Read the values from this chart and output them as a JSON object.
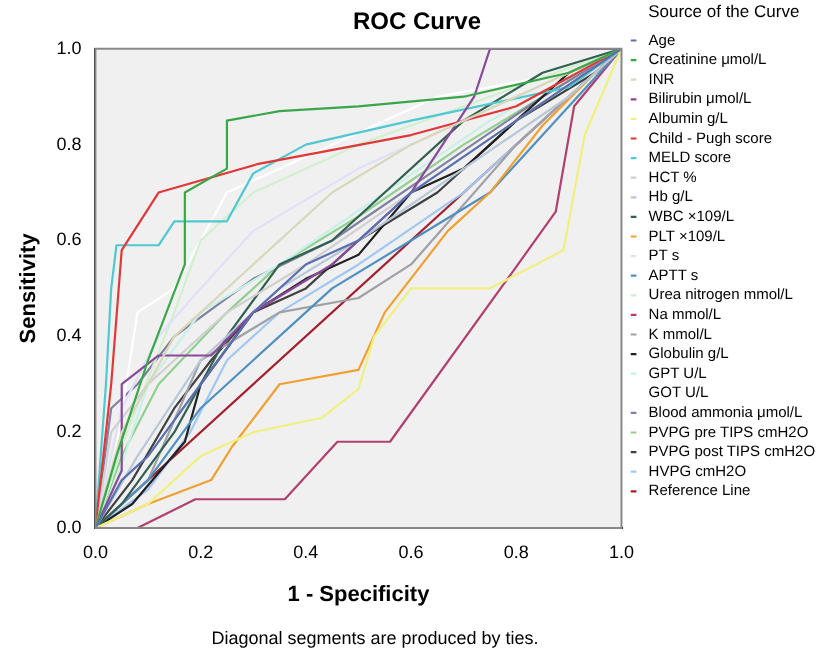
{
  "chart_data": {
    "type": "line",
    "title": "ROC Curve",
    "xlabel": "1 - Specificity",
    "ylabel": "Sensitivity",
    "legend_title": "Source of the Curve",
    "annotations": [
      "Diagonal segments are produced by ties."
    ],
    "xlim": [
      0,
      1
    ],
    "ylim": [
      0,
      1
    ],
    "xticks": [
      {
        "value": 0,
        "label": "0.0"
      },
      {
        "value": 0.2,
        "label": "0.2"
      },
      {
        "value": 0.4,
        "label": "0.4"
      },
      {
        "value": 0.6,
        "label": "0.6"
      },
      {
        "value": 0.8,
        "label": "0.8"
      },
      {
        "value": 1,
        "label": "1.0"
      }
    ],
    "yticks": [
      {
        "value": 0,
        "label": "0.0"
      },
      {
        "value": 0.2,
        "label": "0.2"
      },
      {
        "value": 0.4,
        "label": "0.4"
      },
      {
        "value": 0.6,
        "label": "0.6"
      },
      {
        "value": 0.8,
        "label": "0.8"
      },
      {
        "value": 1,
        "label": "1.0"
      }
    ],
    "grid": false,
    "legend": "right",
    "marker": "none",
    "line_style": "solid",
    "series": [
      {
        "name": "Age",
        "color": "#5a6fb0",
        "x": [
          0,
          0.05,
          0.1,
          0.2,
          0.3,
          0.4,
          0.5,
          0.6,
          0.8,
          1
        ],
        "values": [
          0,
          0.1,
          0.15,
          0.3,
          0.45,
          0.55,
          0.6,
          0.7,
          0.85,
          1
        ]
      },
      {
        "name": "Creatinine μmol/L",
        "color": "#3aa64a",
        "x": [
          0,
          0.04,
          0.1,
          0.17,
          0.17,
          0.25,
          0.25,
          0.35,
          0.5,
          0.7,
          0.9,
          1
        ],
        "values": [
          0,
          0.15,
          0.35,
          0.55,
          0.7,
          0.75,
          0.85,
          0.87,
          0.88,
          0.9,
          0.95,
          1
        ]
      },
      {
        "name": "INR",
        "color": "#d8d8b8",
        "x": [
          0,
          0.05,
          0.15,
          0.3,
          0.45,
          0.6,
          0.8,
          1
        ],
        "values": [
          0,
          0.2,
          0.4,
          0.55,
          0.7,
          0.8,
          0.9,
          1
        ]
      },
      {
        "name": "Bilirubin μmol/L",
        "color": "#8a4a9a",
        "x": [
          0,
          0.05,
          0.05,
          0.12,
          0.22,
          0.3,
          0.45,
          0.6,
          0.72,
          0.75,
          1
        ],
        "values": [
          0,
          0.12,
          0.3,
          0.36,
          0.36,
          0.45,
          0.55,
          0.7,
          0.9,
          1,
          1
        ]
      },
      {
        "name": "Albumin g/L",
        "color": "#f0f080",
        "x": [
          0,
          0.1,
          0.2,
          0.3,
          0.43,
          0.5,
          0.53,
          0.6,
          0.75,
          0.89,
          0.93,
          1
        ],
        "values": [
          0,
          0.05,
          0.15,
          0.2,
          0.23,
          0.29,
          0.4,
          0.5,
          0.5,
          0.58,
          0.82,
          1
        ]
      },
      {
        "name": "Child - Pugh score",
        "color": "#e03838",
        "x": [
          0,
          0.03,
          0.05,
          0.12,
          0.31,
          0.6,
          0.8,
          1
        ],
        "values": [
          0,
          0.3,
          0.58,
          0.7,
          0.76,
          0.82,
          0.88,
          1
        ]
      },
      {
        "name": "MELD score",
        "color": "#50c8d0",
        "x": [
          0,
          0.02,
          0.03,
          0.04,
          0.12,
          0.15,
          0.25,
          0.3,
          0.4,
          0.6,
          0.9,
          1
        ],
        "values": [
          0,
          0.3,
          0.5,
          0.59,
          0.59,
          0.64,
          0.64,
          0.74,
          0.8,
          0.85,
          0.92,
          1
        ]
      },
      {
        "name": "HCT %",
        "color": "#d0d0d0",
        "x": [
          0,
          0.03,
          0.1,
          0.25,
          0.4,
          0.6,
          0.8,
          1
        ],
        "values": [
          0,
          0.2,
          0.3,
          0.45,
          0.55,
          0.7,
          0.85,
          1
        ]
      },
      {
        "name": "Hb g/L",
        "color": "#b8c8d8",
        "x": [
          0,
          0.08,
          0.2,
          0.35,
          0.5,
          0.7,
          0.9,
          1
        ],
        "values": [
          0,
          0.15,
          0.35,
          0.5,
          0.6,
          0.75,
          0.9,
          1
        ]
      },
      {
        "name": "WBC ×109/L",
        "color": "#306050",
        "x": [
          0,
          0.05,
          0.15,
          0.25,
          0.35,
          0.45,
          0.55,
          0.7,
          0.85,
          1
        ],
        "values": [
          0,
          0.05,
          0.2,
          0.4,
          0.55,
          0.6,
          0.7,
          0.85,
          0.95,
          1
        ]
      },
      {
        "name": "PLT ×109/L",
        "color": "#f0a030",
        "x": [
          0,
          0.1,
          0.22,
          0.26,
          0.35,
          0.5,
          0.55,
          0.67,
          0.75,
          0.85,
          0.95,
          1
        ],
        "values": [
          0,
          0.05,
          0.1,
          0.17,
          0.3,
          0.33,
          0.45,
          0.62,
          0.7,
          0.84,
          0.95,
          1
        ]
      },
      {
        "name": "PT s",
        "color": "#e0e0f8",
        "x": [
          0,
          0.05,
          0.12,
          0.2,
          0.3,
          0.5,
          0.7,
          1
        ],
        "values": [
          0,
          0.25,
          0.4,
          0.5,
          0.62,
          0.75,
          0.85,
          1
        ]
      },
      {
        "name": "APTT s",
        "color": "#5090c0",
        "x": [
          0,
          0.1,
          0.2,
          0.3,
          0.45,
          0.6,
          0.75,
          0.9,
          1
        ],
        "values": [
          0,
          0.1,
          0.25,
          0.35,
          0.5,
          0.6,
          0.7,
          0.88,
          1
        ]
      },
      {
        "name": "Urea nitrogen mmol/L",
        "color": "#d0f0d0",
        "x": [
          0,
          0.06,
          0.15,
          0.2,
          0.3,
          0.5,
          0.7,
          1
        ],
        "values": [
          0,
          0.2,
          0.45,
          0.6,
          0.7,
          0.8,
          0.88,
          1
        ]
      },
      {
        "name": "Na mmol/L",
        "color": "#b04070",
        "x": [
          0,
          0.08,
          0.19,
          0.36,
          0.46,
          0.56,
          0.79,
          0.875,
          0.91,
          1
        ],
        "values": [
          0,
          0,
          0.06,
          0.06,
          0.18,
          0.18,
          0.53,
          0.66,
          0.88,
          1
        ]
      },
      {
        "name": "K mmol/L",
        "color": "#a0a0a8",
        "x": [
          0,
          0.1,
          0.2,
          0.35,
          0.5,
          0.6,
          0.8,
          1
        ],
        "values": [
          0,
          0.1,
          0.35,
          0.45,
          0.48,
          0.55,
          0.8,
          1
        ]
      },
      {
        "name": "Globulin g/L",
        "color": "#202020",
        "x": [
          0,
          0.07,
          0.17,
          0.2,
          0.3,
          0.4,
          0.5,
          0.6,
          0.7,
          0.8,
          0.9,
          1
        ],
        "values": [
          0,
          0.05,
          0.18,
          0.3,
          0.45,
          0.52,
          0.57,
          0.7,
          0.75,
          0.85,
          0.95,
          1
        ]
      },
      {
        "name": "GPT U/L",
        "color": "#c8f0e8",
        "x": [
          0,
          0.04,
          0.1,
          0.2,
          0.35,
          0.55,
          0.75,
          1
        ],
        "values": [
          0,
          0.1,
          0.3,
          0.45,
          0.55,
          0.7,
          0.85,
          1
        ]
      },
      {
        "name": "GOT U/L",
        "color": "#ffffff",
        "x": [
          0,
          0.03,
          0.08,
          0.15,
          0.25,
          0.45,
          0.65,
          0.9,
          1
        ],
        "values": [
          0,
          0.1,
          0.45,
          0.5,
          0.7,
          0.8,
          0.9,
          0.95,
          1
        ]
      },
      {
        "name": "Blood ammonia μmol/L",
        "color": "#8080a0",
        "x": [
          0,
          0.03,
          0.08,
          0.15,
          0.3,
          0.45,
          0.65,
          0.85,
          1
        ],
        "values": [
          0,
          0.25,
          0.3,
          0.4,
          0.52,
          0.6,
          0.75,
          0.9,
          1
        ]
      },
      {
        "name": "PVPG pre TIPS cmH2O",
        "color": "#90d090",
        "x": [
          0,
          0.05,
          0.12,
          0.25,
          0.35,
          0.5,
          0.7,
          1
        ],
        "values": [
          0,
          0.15,
          0.3,
          0.45,
          0.55,
          0.65,
          0.8,
          1
        ]
      },
      {
        "name": "PVPG post TIPS cmH2O",
        "color": "#404040",
        "x": [
          0,
          0.07,
          0.15,
          0.22,
          0.3,
          0.4,
          0.5,
          0.65,
          0.8,
          0.95,
          1
        ],
        "values": [
          0,
          0.1,
          0.25,
          0.35,
          0.45,
          0.5,
          0.6,
          0.7,
          0.85,
          0.95,
          1
        ]
      },
      {
        "name": "HVPG cmH2O",
        "color": "#a0c8f0",
        "x": [
          0,
          0.1,
          0.18,
          0.25,
          0.35,
          0.5,
          0.7,
          0.85,
          1
        ],
        "values": [
          0,
          0.08,
          0.2,
          0.35,
          0.45,
          0.55,
          0.7,
          0.85,
          1
        ]
      },
      {
        "name": "Reference Line",
        "color": "#a02030",
        "x": [
          0,
          1
        ],
        "values": [
          0,
          1
        ]
      }
    ]
  }
}
